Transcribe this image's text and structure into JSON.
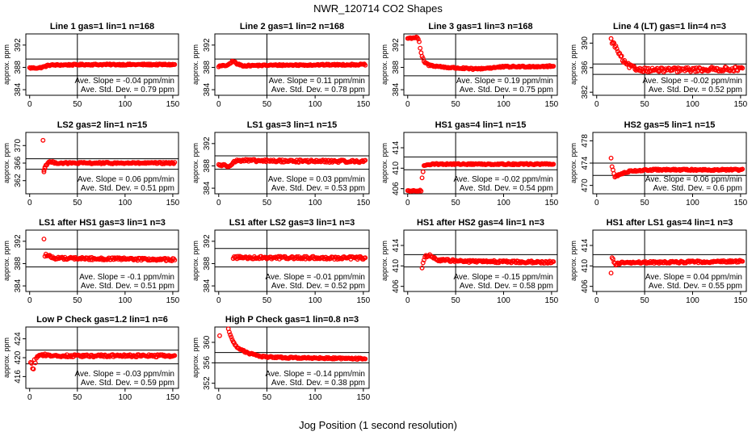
{
  "figure": {
    "title": "NWR_120714  CO2 Shapes",
    "xlabel": "Jog Position (1 second resolution)"
  },
  "colors": {
    "points": "#ff0000",
    "axes": "#000000",
    "background": "#ffffff"
  },
  "chart_data": [
    {
      "type": "scatter",
      "title": "Line 1 gas=1 lin=1 n=168",
      "ylabel": "approx. ppm",
      "xlim": [
        -4,
        156
      ],
      "ylim": [
        383,
        394
      ],
      "xticks": [
        0,
        50,
        100,
        150
      ],
      "yticks": [
        384,
        388,
        392
      ],
      "hlines": [
        389.5,
        386.5
      ],
      "vline": 50,
      "slope_text": "Ave. Slope = -0.04  ppm/min",
      "sd_text": "Ave. Std. Dev. = 0.79  ppm",
      "segments": [
        [
          0,
          387.9
        ],
        [
          10,
          387.9
        ],
        [
          15,
          388.1
        ],
        [
          20,
          388.4
        ],
        [
          60,
          388.5
        ],
        [
          152,
          388.5
        ]
      ],
      "x_start": 0,
      "noise": 0.12
    },
    {
      "type": "scatter",
      "title": "Line 2 gas=1 lin=2 n=168",
      "ylabel": "approx. ppm",
      "xlim": [
        -4,
        156
      ],
      "ylim": [
        383,
        394
      ],
      "xticks": [
        0,
        50,
        100,
        150
      ],
      "yticks": [
        384,
        388,
        392
      ],
      "hlines": [
        389.5,
        386.5
      ],
      "vline": 50,
      "slope_text": "Ave. Slope =  0.11  ppm/min",
      "sd_text": "Ave. Std. Dev. = 0.78  ppm",
      "segments": [
        [
          0,
          388.2
        ],
        [
          10,
          388.4
        ],
        [
          15,
          389.2
        ],
        [
          19,
          388.6
        ],
        [
          25,
          388.3
        ],
        [
          60,
          388.4
        ],
        [
          152,
          388.5
        ]
      ],
      "x_start": 0,
      "noise": 0.12
    },
    {
      "type": "scatter",
      "title": "Line 3 gas=1 lin=3 n=168",
      "ylabel": "approx. ppm",
      "xlim": [
        -4,
        156
      ],
      "ylim": [
        383,
        394
      ],
      "xticks": [
        0,
        50,
        100,
        150
      ],
      "yticks": [
        384,
        388,
        392
      ],
      "hlines": [
        389.5,
        386.5
      ],
      "vline": 50,
      "slope_text": "Ave. Slope =  0.19  ppm/min",
      "sd_text": "Ave. Std. Dev. = 0.75  ppm",
      "segments": [
        [
          0,
          393.2
        ],
        [
          10,
          393.4
        ],
        [
          12,
          392.5
        ],
        [
          14,
          390.5
        ],
        [
          17,
          389.0
        ],
        [
          22,
          388.4
        ],
        [
          40,
          388.0
        ],
        [
          70,
          387.7
        ],
        [
          100,
          388.1
        ],
        [
          152,
          388.2
        ]
      ],
      "x_start": 0,
      "noise": 0.14
    },
    {
      "type": "scatter",
      "title": "Line 4 (LT) gas=1 lin=4 n=3",
      "ylabel": "approx. ppm",
      "xlim": [
        -4,
        156
      ],
      "ylim": [
        381.5,
        391.5
      ],
      "xticks": [
        0,
        50,
        100,
        150
      ],
      "yticks": [
        382,
        386,
        390
      ],
      "hlines": [
        386.6,
        384.9
      ],
      "vline": 50,
      "slope_text": "Ave. Slope = -0.02  ppm/min",
      "sd_text": "Ave. Std. Dev. = 0.52  ppm",
      "segments": [
        [
          15,
          390.5
        ],
        [
          20,
          389.3
        ],
        [
          25,
          387.8
        ],
        [
          30,
          386.6
        ],
        [
          40,
          385.8
        ],
        [
          60,
          385.6
        ],
        [
          152,
          385.8
        ]
      ],
      "x_start": 15,
      "noise": 0.35
    },
    {
      "type": "scatter",
      "title": "LS2 gas=2 lin=1 n=15",
      "ylabel": "approx. ppm",
      "xlim": [
        -4,
        156
      ],
      "ylim": [
        359,
        373
      ],
      "xticks": [
        0,
        50,
        100,
        150
      ],
      "yticks": [
        362,
        366,
        370
      ],
      "hlines": [
        367.0,
        364.6
      ],
      "vline": 50,
      "slope_text": "Ave. Slope =  0.06  ppm/min",
      "sd_text": "Ave. Std. Dev. = 0.51  ppm",
      "segments": [
        [
          15,
          364.5
        ],
        [
          17,
          365.5
        ],
        [
          20,
          366.3
        ],
        [
          30,
          366.0
        ],
        [
          152,
          366.0
        ]
      ],
      "x_start": 15,
      "noise": 0.18,
      "extra_points": [
        [
          14,
          371.2
        ],
        [
          15,
          364.0
        ],
        [
          16,
          364.8
        ]
      ]
    },
    {
      "type": "scatter",
      "title": "LS1 gas=3 lin=1 n=15",
      "ylabel": "approx. ppm",
      "xlim": [
        -4,
        156
      ],
      "ylim": [
        383,
        394
      ],
      "xticks": [
        0,
        50,
        100,
        150
      ],
      "yticks": [
        384,
        388,
        392
      ],
      "hlines": [
        389.8,
        387.4
      ],
      "vline": 50,
      "slope_text": "Ave. Slope =  0.03  ppm/min",
      "sd_text": "Ave. Std. Dev. = 0.53  ppm",
      "segments": [
        [
          0,
          388.2
        ],
        [
          10,
          388.0
        ],
        [
          15,
          388.6
        ],
        [
          20,
          389.0
        ],
        [
          40,
          388.9
        ],
        [
          152,
          388.8
        ]
      ],
      "x_start": 0,
      "noise": 0.22
    },
    {
      "type": "scatter",
      "title": "HS1 gas=4 lin=1 n=15",
      "ylabel": "approx. ppm",
      "xlim": [
        -4,
        156
      ],
      "ylim": [
        405,
        417
      ],
      "xticks": [
        0,
        50,
        100,
        150
      ],
      "yticks": [
        406,
        410,
        414
      ],
      "hlines": [
        412.2,
        409.7
      ],
      "vline": 50,
      "slope_text": "Ave. Slope = -0.02  ppm/min",
      "sd_text": "Ave. Std. Dev. = 0.54  ppm",
      "segments": [
        [
          0,
          405.5
        ],
        [
          14,
          405.6
        ],
        [
          15,
          408.0
        ],
        [
          17,
          410.6
        ],
        [
          25,
          410.8
        ],
        [
          152,
          410.8
        ]
      ],
      "x_start": 0,
      "noise": 0.13
    },
    {
      "type": "scatter",
      "title": "HS2 gas=5 lin=1 n=15",
      "ylabel": "approx. ppm",
      "xlim": [
        -4,
        156
      ],
      "ylim": [
        468.5,
        479.5
      ],
      "xticks": [
        0,
        50,
        100,
        150
      ],
      "yticks": [
        470,
        474,
        478
      ],
      "hlines": [
        474.0,
        471.8
      ],
      "vline": 50,
      "slope_text": "Ave. Slope =  0.06  ppm/min",
      "sd_text": "Ave. Std. Dev. = 0.6  ppm",
      "segments": [
        [
          16,
          473.4
        ],
        [
          19,
          471.5
        ],
        [
          23,
          471.9
        ],
        [
          35,
          472.6
        ],
        [
          60,
          472.8
        ],
        [
          152,
          472.8
        ]
      ],
      "x_start": 16,
      "noise": 0.13,
      "extra_points": [
        [
          15,
          474.9
        ]
      ]
    },
    {
      "type": "scatter",
      "title": "LS1 after HS1 gas=3 lin=1 n=3",
      "ylabel": "approx. ppm",
      "xlim": [
        -4,
        156
      ],
      "ylim": [
        383,
        394
      ],
      "xticks": [
        0,
        50,
        100,
        150
      ],
      "yticks": [
        384,
        388,
        392
      ],
      "hlines": [
        390.6,
        387.4
      ],
      "vline": 50,
      "slope_text": "Ave. Slope = -0.1  ppm/min",
      "sd_text": "Ave. Std. Dev. = 0.51  ppm",
      "segments": [
        [
          17,
          389.6
        ],
        [
          25,
          389.0
        ],
        [
          60,
          388.9
        ],
        [
          152,
          388.7
        ]
      ],
      "x_start": 17,
      "noise": 0.22,
      "extra_points": [
        [
          15,
          392.4
        ],
        [
          16,
          389.3
        ]
      ]
    },
    {
      "type": "scatter",
      "title": "LS1 after LS2 gas=3 lin=1 n=3",
      "ylabel": "approx. ppm",
      "xlim": [
        -4,
        156
      ],
      "ylim": [
        383,
        394
      ],
      "xticks": [
        0,
        50,
        100,
        150
      ],
      "yticks": [
        384,
        388,
        392
      ],
      "hlines": [
        390.7,
        387.4
      ],
      "vline": 50,
      "slope_text": "Ave. Slope = -0.01  ppm/min",
      "sd_text": "Ave. Std. Dev. = 0.52  ppm",
      "segments": [
        [
          15,
          389.1
        ],
        [
          152,
          389.0
        ]
      ],
      "x_start": 15,
      "noise": 0.25
    },
    {
      "type": "scatter",
      "title": "HS1 after HS2 gas=4 lin=1 n=3",
      "ylabel": "approx. ppm",
      "xlim": [
        -4,
        156
      ],
      "ylim": [
        405,
        417
      ],
      "xticks": [
        0,
        50,
        100,
        150
      ],
      "yticks": [
        406,
        410,
        414
      ],
      "hlines": [
        412.2,
        409.8
      ],
      "vline": 50,
      "slope_text": "Ave. Slope = -0.15  ppm/min",
      "sd_text": "Ave. Std. Dev. = 0.58  ppm",
      "segments": [
        [
          16,
          410.6
        ],
        [
          18,
          411.8
        ],
        [
          23,
          412.0
        ],
        [
          30,
          411.2
        ],
        [
          60,
          410.9
        ],
        [
          152,
          410.7
        ]
      ],
      "x_start": 16,
      "noise": 0.22,
      "extra_points": [
        [
          15,
          409.6
        ]
      ]
    },
    {
      "type": "scatter",
      "title": "HS1 after LS1 gas=4 lin=1 n=3",
      "ylabel": "approx. ppm",
      "xlim": [
        -4,
        156
      ],
      "ylim": [
        405,
        417
      ],
      "xticks": [
        0,
        50,
        100,
        150
      ],
      "yticks": [
        406,
        410,
        414
      ],
      "hlines": [
        412.2,
        409.8
      ],
      "vline": 50,
      "slope_text": "Ave. Slope =  0.04  ppm/min",
      "sd_text": "Ave. Std. Dev. = 0.55  ppm",
      "segments": [
        [
          17,
          411.2
        ],
        [
          20,
          410.3
        ],
        [
          25,
          410.6
        ],
        [
          152,
          410.9
        ]
      ],
      "x_start": 17,
      "noise": 0.2,
      "extra_points": [
        [
          15,
          408.6
        ],
        [
          16,
          411.6
        ]
      ]
    },
    {
      "type": "scatter",
      "title": "Low P Check gas=1.2 lin=1 n=6",
      "ylabel": "approx. ppm",
      "xlim": [
        -4,
        156
      ],
      "ylim": [
        413.5,
        426.5
      ],
      "xticks": [
        0,
        50,
        100,
        150
      ],
      "yticks": [
        416,
        420,
        424
      ],
      "hlines": [
        421.6,
        418.7
      ],
      "vline": 50,
      "slope_text": "Ave. Slope = -0.03  ppm/min",
      "sd_text": "Ave. Std. Dev. = 0.59  ppm",
      "segments": [
        [
          7,
          420.0
        ],
        [
          10,
          420.6
        ],
        [
          30,
          420.4
        ],
        [
          152,
          420.4
        ]
      ],
      "x_start": 7,
      "noise": 0.25,
      "extra_points": [
        [
          1,
          419.0
        ],
        [
          2,
          418.8
        ],
        [
          3,
          417.7
        ],
        [
          4,
          417.6
        ],
        [
          5,
          419.6
        ],
        [
          6,
          418.9
        ]
      ]
    },
    {
      "type": "scatter",
      "title": "High P Check gas=1 lin=0.8 n=3",
      "ylabel": "approx. ppm",
      "xlim": [
        -4,
        156
      ],
      "ylim": [
        351,
        363
      ],
      "xticks": [
        0,
        50,
        100,
        150
      ],
      "yticks": [
        352,
        356,
        360
      ],
      "hlines": [
        358.0,
        356.0
      ],
      "vline": 50,
      "slope_text": "Ave. Slope = -0.14  ppm/min",
      "sd_text": "Ave. Std. Dev. = 0.38  ppm",
      "segments": [
        [
          10,
          362.6
        ],
        [
          15,
          360.0
        ],
        [
          20,
          358.9
        ],
        [
          30,
          357.9
        ],
        [
          45,
          357.2
        ],
        [
          70,
          357.0
        ],
        [
          152,
          356.8
        ]
      ],
      "x_start": 10,
      "noise": 0.15,
      "extra_points": [
        [
          1,
          361.3
        ]
      ]
    }
  ]
}
